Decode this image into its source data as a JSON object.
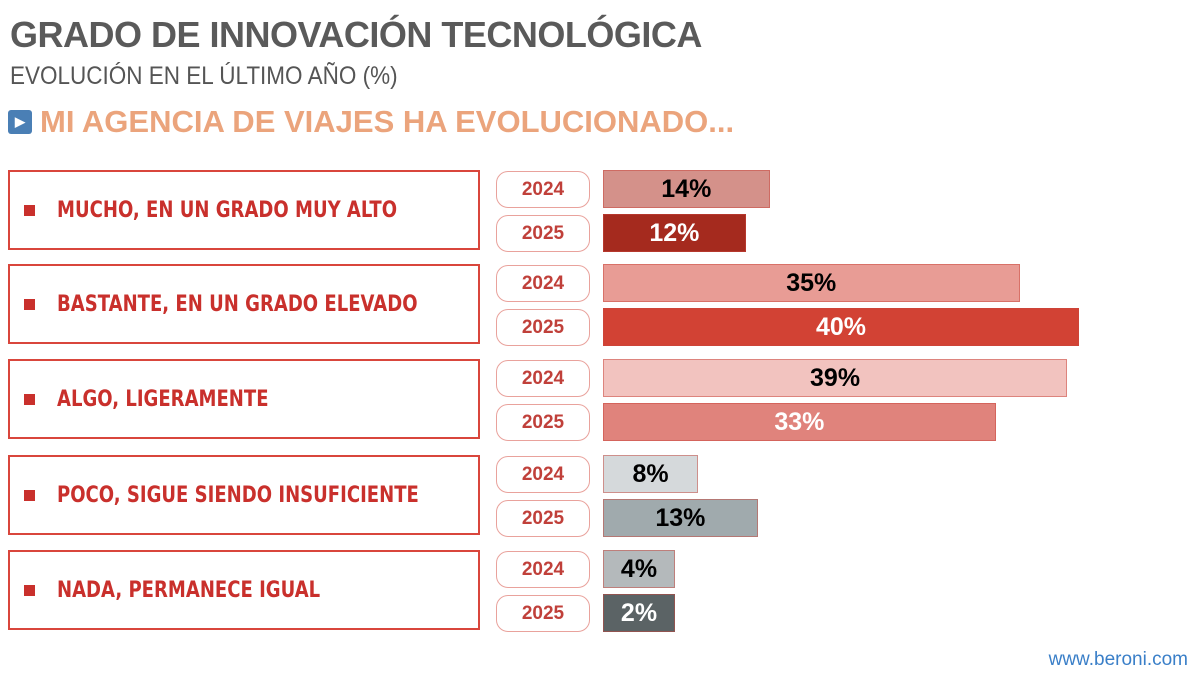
{
  "header": {
    "title": "GRADO DE INNOVACIÓN TECNOLÓGICA",
    "subtitle": "EVOLUCIÓN EN EL ÚLTIMO AÑO  (%)",
    "question": "MI AGENCIA DE VIAJES HA EVOLUCIONADO...",
    "question_icon": "play-icon"
  },
  "footer": {
    "url": "www.beroni.com"
  },
  "chart_data": {
    "type": "bar",
    "orientation": "horizontal",
    "categories": [
      "MUCHO, EN UN GRADO MUY ALTO",
      "BASTANTE, EN UN GRADO ELEVADO",
      "ALGO, LIGERAMENTE",
      "POCO, SIGUE SIENDO INSUFICIENTE",
      "NADA, PERMANECE IGUAL"
    ],
    "series": [
      {
        "name": "2024",
        "values": [
          14,
          35,
          39,
          8,
          4
        ],
        "labels": [
          "14%",
          "35%",
          "39%",
          "8%",
          "4%"
        ],
        "colors": [
          "#d4918a",
          "#e89c95",
          "#f2c3bf",
          "#d5d9db",
          "#b4b9bb"
        ]
      },
      {
        "name": "2025",
        "values": [
          12,
          40,
          33,
          13,
          2
        ],
        "labels": [
          "12%",
          "40%",
          "33%",
          "13%",
          "2%"
        ],
        "colors": [
          "#a52a1e",
          "#d24234",
          "#e0837c",
          "#a0aaad",
          "#5b6365"
        ]
      }
    ],
    "unit": "%"
  }
}
